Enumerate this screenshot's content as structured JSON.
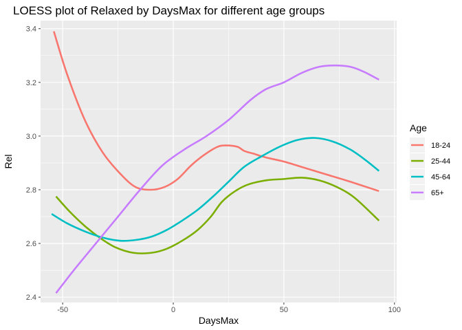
{
  "chart_data": {
    "type": "line",
    "title": "LOESS plot of Relaxed by DaysMax for different age groups",
    "xlabel": "DaysMax",
    "ylabel": "Rel",
    "xlim": [
      -60,
      101
    ],
    "ylim": [
      2.38,
      3.43
    ],
    "x_ticks": [
      -50,
      0,
      50,
      100
    ],
    "y_ticks": [
      2.4,
      2.6,
      2.8,
      3.0,
      3.2,
      3.4
    ],
    "x_tick_labels": [
      "-50",
      "0",
      "50",
      "100"
    ],
    "y_tick_labels": [
      "2.4",
      "2.6",
      "2.8",
      "3.0",
      "3.2",
      "3.4"
    ],
    "grid": true,
    "legend": {
      "title": "Age",
      "position": "right"
    },
    "series": [
      {
        "name": "18-24",
        "color": "#F8766D",
        "x": [
          -54,
          -48,
          -40,
          -32,
          -24,
          -17,
          -10,
          -4,
          2,
          8,
          14,
          20,
          24,
          29,
          32,
          36,
          42,
          50,
          60,
          70,
          80,
          93
        ],
        "y": [
          3.39,
          3.23,
          3.06,
          2.94,
          2.86,
          2.81,
          2.8,
          2.81,
          2.84,
          2.89,
          2.93,
          2.96,
          2.965,
          2.96,
          2.945,
          2.935,
          2.92,
          2.905,
          2.88,
          2.855,
          2.83,
          2.795
        ]
      },
      {
        "name": "25-44",
        "color": "#7CAE00",
        "x": [
          -53,
          -47,
          -40,
          -33,
          -26,
          -18,
          -10,
          -3,
          4,
          11,
          17,
          22,
          28,
          34,
          42,
          50,
          58,
          66,
          74,
          82,
          93
        ],
        "y": [
          2.775,
          2.72,
          2.665,
          2.62,
          2.585,
          2.565,
          2.565,
          2.58,
          2.61,
          2.65,
          2.7,
          2.755,
          2.795,
          2.82,
          2.835,
          2.84,
          2.845,
          2.835,
          2.81,
          2.77,
          2.685
        ]
      },
      {
        "name": "45-64",
        "color": "#00BFC4",
        "x": [
          -55,
          -48,
          -40,
          -32,
          -24,
          -17,
          -10,
          -3,
          4,
          11,
          18,
          25,
          32,
          40,
          48,
          56,
          64,
          72,
          80,
          87,
          93
        ],
        "y": [
          2.71,
          2.675,
          2.645,
          2.622,
          2.61,
          2.613,
          2.625,
          2.65,
          2.685,
          2.725,
          2.775,
          2.83,
          2.885,
          2.925,
          2.96,
          2.985,
          2.993,
          2.98,
          2.95,
          2.91,
          2.87
        ]
      },
      {
        "name": "65+",
        "color": "#C77CFF",
        "x": [
          -53,
          -45,
          -35,
          -25,
          -15,
          -5,
          5,
          15,
          25,
          35,
          42,
          50,
          58,
          66,
          73,
          80,
          86,
          93
        ],
        "y": [
          2.415,
          2.5,
          2.6,
          2.7,
          2.8,
          2.89,
          2.95,
          3.0,
          3.06,
          3.135,
          3.175,
          3.2,
          3.235,
          3.258,
          3.263,
          3.258,
          3.24,
          3.21
        ]
      }
    ]
  }
}
